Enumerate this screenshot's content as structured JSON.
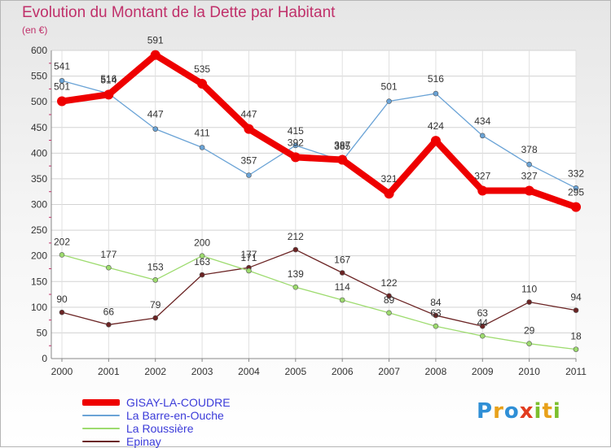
{
  "title": "Evolution du Montant de la Dette par Habitant",
  "unit_note": "(en €)",
  "brand": {
    "text": "Proxiti",
    "letters": [
      {
        "ch": "P",
        "color": "#2f8fd6"
      },
      {
        "ch": "r",
        "color": "#e8a11a"
      },
      {
        "ch": "o",
        "color": "#2f8fd6"
      },
      {
        "ch": "x",
        "color": "#e23c1f"
      },
      {
        "ch": "i",
        "color": "#7cbf2e"
      },
      {
        "ch": "t",
        "color": "#e8a11a"
      },
      {
        "ch": "i",
        "color": "#7cbf2e"
      }
    ]
  },
  "chart_data": {
    "type": "line",
    "title": "Evolution du Montant de la Dette par Habitant",
    "subtitle": "(en €)",
    "x": [
      "2000",
      "2001",
      "2002",
      "2003",
      "2004",
      "2005",
      "2006",
      "2007",
      "2008",
      "2009",
      "2010",
      "2011"
    ],
    "ylim": [
      0,
      600
    ],
    "yticks": [
      0,
      50,
      100,
      150,
      200,
      250,
      300,
      350,
      400,
      450,
      500,
      550,
      600
    ],
    "grid": true,
    "legend_position": "bottom-left",
    "series": [
      {
        "name": "GISAY-LA-COUDRE",
        "color": "#ee0000",
        "values": [
          501,
          514,
          591,
          535,
          447,
          392,
          387,
          321,
          424,
          327,
          327,
          295
        ]
      },
      {
        "name": "La Barre-en-Ouche",
        "color": "#6aa3d6",
        "values": [
          541,
          516,
          447,
          411,
          357,
          415,
          385,
          501,
          516,
          434,
          378,
          332
        ]
      },
      {
        "name": "La Roussière",
        "color": "#9ddb6e",
        "values": [
          202,
          177,
          153,
          200,
          171,
          139,
          114,
          89,
          63,
          44,
          29,
          18
        ]
      },
      {
        "name": "Epinay",
        "color": "#6b2424",
        "values": [
          90,
          66,
          79,
          163,
          177,
          212,
          167,
          122,
          84,
          63,
          110,
          94
        ]
      }
    ]
  }
}
